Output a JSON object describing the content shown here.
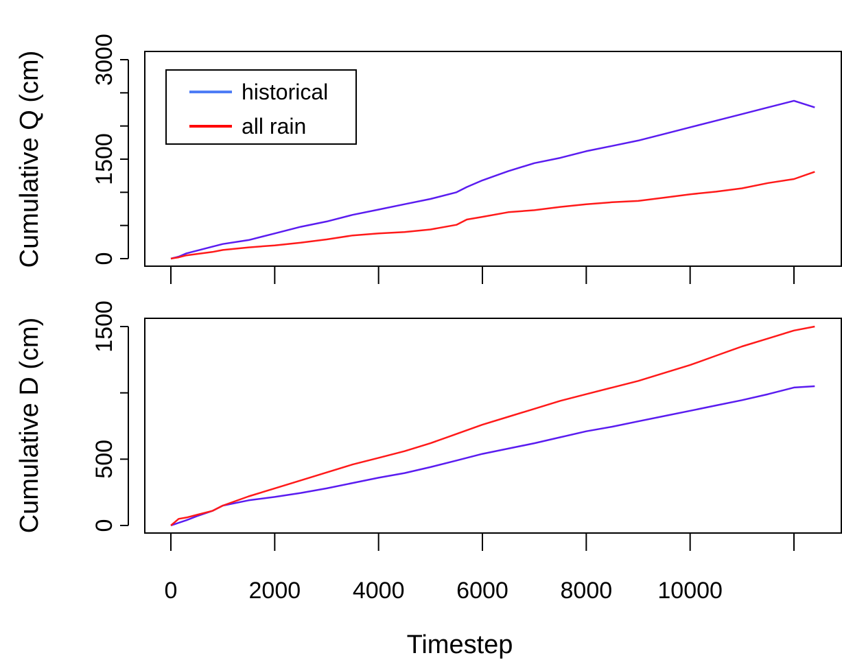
{
  "chart_data": [
    {
      "type": "line",
      "title": "",
      "xlabel": "",
      "ylabel": "Cumulative Q (cm)",
      "xlim": [
        0,
        12400
      ],
      "ylim": [
        0,
        3000
      ],
      "y_ticks": [
        0,
        500,
        1000,
        1500,
        2000,
        2500,
        3000
      ],
      "y_tick_labels": [
        "0",
        "",
        "",
        "1500",
        "",
        "",
        "3000"
      ],
      "x_ticks": [
        0,
        2000,
        4000,
        6000,
        8000,
        10000,
        12000
      ],
      "grid": false,
      "legend": {
        "position": "top-left",
        "entries": [
          {
            "label": "historical",
            "color": "#4f7df5"
          },
          {
            "label": "all rain",
            "color": "#ff0000"
          }
        ]
      },
      "series": [
        {
          "name": "historical",
          "color": "#5a1cf0",
          "x": [
            0,
            150,
            300,
            500,
            800,
            1000,
            1500,
            2000,
            2500,
            3000,
            3500,
            4000,
            4500,
            5000,
            5500,
            5700,
            6000,
            6500,
            7000,
            7500,
            8000,
            8500,
            9000,
            9500,
            10000,
            10500,
            11000,
            11500,
            12000,
            12400
          ],
          "values": [
            0,
            30,
            80,
            120,
            180,
            220,
            280,
            380,
            480,
            560,
            660,
            740,
            820,
            900,
            1000,
            1080,
            1180,
            1320,
            1440,
            1520,
            1620,
            1700,
            1780,
            1880,
            1980,
            2080,
            2180,
            2280,
            2380,
            2280
          ]
        },
        {
          "name": "all rain",
          "color": "#ff1a1a",
          "x": [
            0,
            150,
            300,
            500,
            800,
            1000,
            1500,
            2000,
            2500,
            3000,
            3500,
            4000,
            4500,
            5000,
            5500,
            5700,
            6000,
            6500,
            7000,
            7500,
            8000,
            8500,
            9000,
            9500,
            10000,
            10500,
            11000,
            11500,
            12000,
            12400
          ],
          "values": [
            0,
            20,
            50,
            70,
            100,
            130,
            170,
            200,
            240,
            290,
            350,
            380,
            400,
            440,
            510,
            590,
            630,
            700,
            730,
            780,
            820,
            850,
            870,
            920,
            970,
            1010,
            1060,
            1140,
            1200,
            1310
          ]
        }
      ]
    },
    {
      "type": "line",
      "title": "",
      "xlabel": "Timestep",
      "ylabel": "Cumulative D (cm)",
      "xlim": [
        0,
        12400
      ],
      "ylim": [
        0,
        1500
      ],
      "y_ticks": [
        0,
        500,
        1000,
        1500
      ],
      "y_tick_labels": [
        "0",
        "500",
        "",
        "1500"
      ],
      "x_ticks": [
        0,
        2000,
        4000,
        6000,
        8000,
        10000,
        12000
      ],
      "x_tick_labels": [
        "0",
        "2000",
        "4000",
        "6000",
        "8000",
        "10000",
        ""
      ],
      "grid": false,
      "series": [
        {
          "name": "historical",
          "color": "#5a1cf0",
          "x": [
            0,
            150,
            300,
            500,
            800,
            1000,
            1500,
            2000,
            2500,
            3000,
            3500,
            4000,
            4500,
            5000,
            5500,
            6000,
            6500,
            7000,
            7500,
            8000,
            8500,
            9000,
            9500,
            10000,
            10500,
            11000,
            11500,
            12000,
            12400
          ],
          "values": [
            0,
            20,
            40,
            70,
            110,
            150,
            190,
            215,
            245,
            280,
            320,
            360,
            395,
            440,
            490,
            540,
            580,
            620,
            665,
            710,
            745,
            785,
            825,
            865,
            905,
            945,
            990,
            1040,
            1050
          ]
        },
        {
          "name": "all rain",
          "color": "#ff1a1a",
          "x": [
            0,
            150,
            300,
            500,
            800,
            1000,
            1500,
            2000,
            2500,
            3000,
            3500,
            4000,
            4500,
            5000,
            5500,
            6000,
            6500,
            7000,
            7500,
            8000,
            8500,
            9000,
            9500,
            10000,
            10500,
            11000,
            11500,
            12000,
            12400
          ],
          "values": [
            0,
            50,
            60,
            80,
            110,
            150,
            220,
            280,
            340,
            400,
            460,
            510,
            560,
            620,
            690,
            760,
            820,
            880,
            940,
            990,
            1040,
            1090,
            1150,
            1210,
            1280,
            1350,
            1410,
            1470,
            1500
          ]
        }
      ]
    }
  ]
}
